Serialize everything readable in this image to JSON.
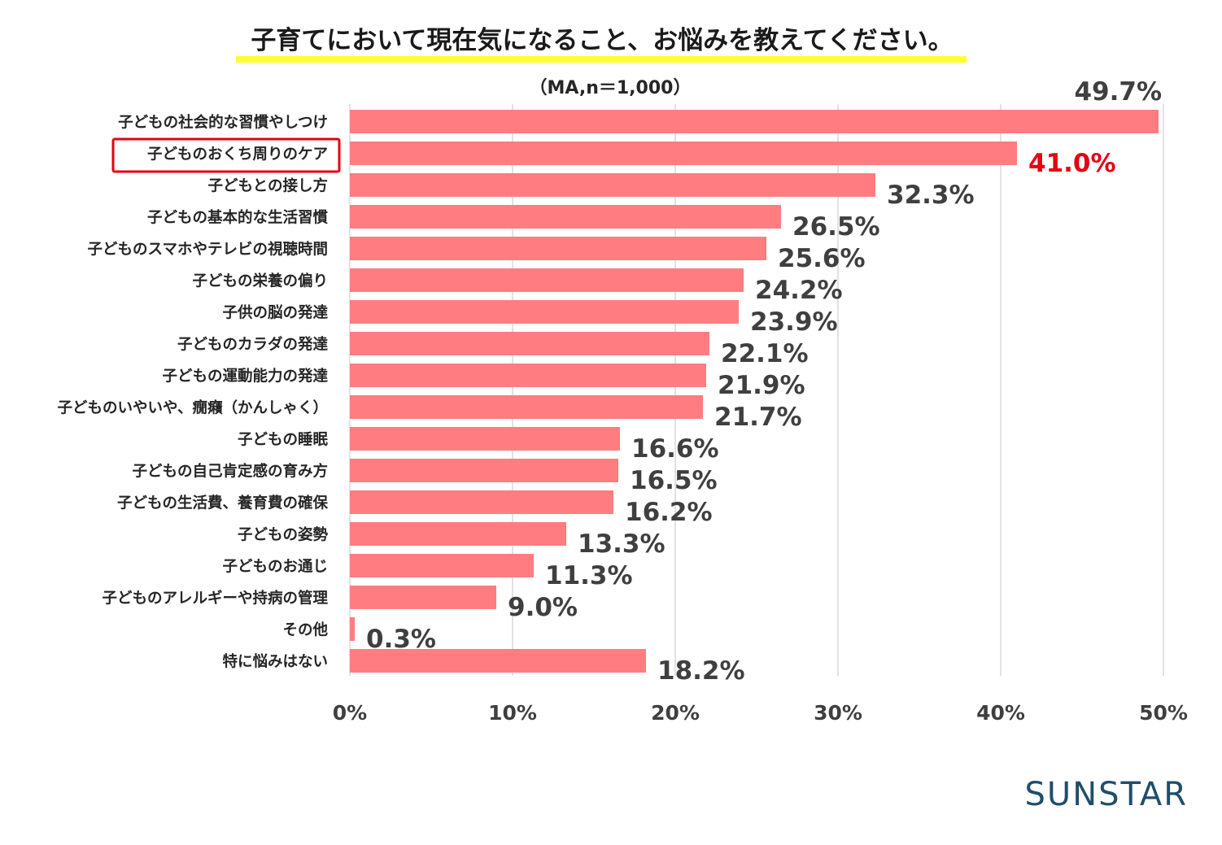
{
  "chart_data": {
    "type": "bar",
    "orientation": "horizontal",
    "title": "子育てにおいて現在気になること、お悩みを教えてください。",
    "subtitle": "（MA,n＝1,000）",
    "categories": [
      "子どもの社会的な習慣やしつけ",
      "子どものおくち周りのケア",
      "子どもとの接し方",
      "子どもの基本的な生活習慣",
      "子どものスマホやテレビの視聴時間",
      "子どもの栄養の偏り",
      "子供の脳の発達",
      "子どものカラダの発達",
      "子どもの運動能力の発達",
      "子どものいやいや、癇癪（かんしゃく）",
      "子どもの睡眠",
      "子どもの自己肯定感の育み方",
      "子どもの生活費、養育費の確保",
      "子どもの姿勢",
      "子どものお通じ",
      "子どものアレルギーや持病の管理",
      "その他",
      "特に悩みはない"
    ],
    "values": [
      49.7,
      41.0,
      32.3,
      26.5,
      25.6,
      24.2,
      23.9,
      22.1,
      21.9,
      21.7,
      16.6,
      16.5,
      16.2,
      13.3,
      11.3,
      9.0,
      0.3,
      18.2
    ],
    "value_labels": [
      "49.7%",
      "41.0%",
      "32.3%",
      "26.5%",
      "25.6%",
      "24.2%",
      "23.9%",
      "22.1%",
      "21.9%",
      "21.7%",
      "16.6%",
      "16.5%",
      "16.2%",
      "13.3%",
      "11.3%",
      "9.0%",
      "0.3%",
      "18.2%"
    ],
    "highlight_index": 1,
    "xlim": [
      0,
      50
    ],
    "x_ticks": [
      0,
      10,
      20,
      30,
      40,
      50
    ],
    "x_tick_labels": [
      "0%",
      "10%",
      "20%",
      "30%",
      "40%",
      "50%"
    ],
    "grid": "vertical",
    "legend": "none"
  },
  "brand": {
    "logo_text": "SUNSTAR"
  },
  "colors": {
    "bar": "#ff7c80",
    "highlight": "#e60012",
    "title_underline": "#ffff33",
    "grid": "#d9d9d9",
    "logo": "#1f4e6a"
  }
}
